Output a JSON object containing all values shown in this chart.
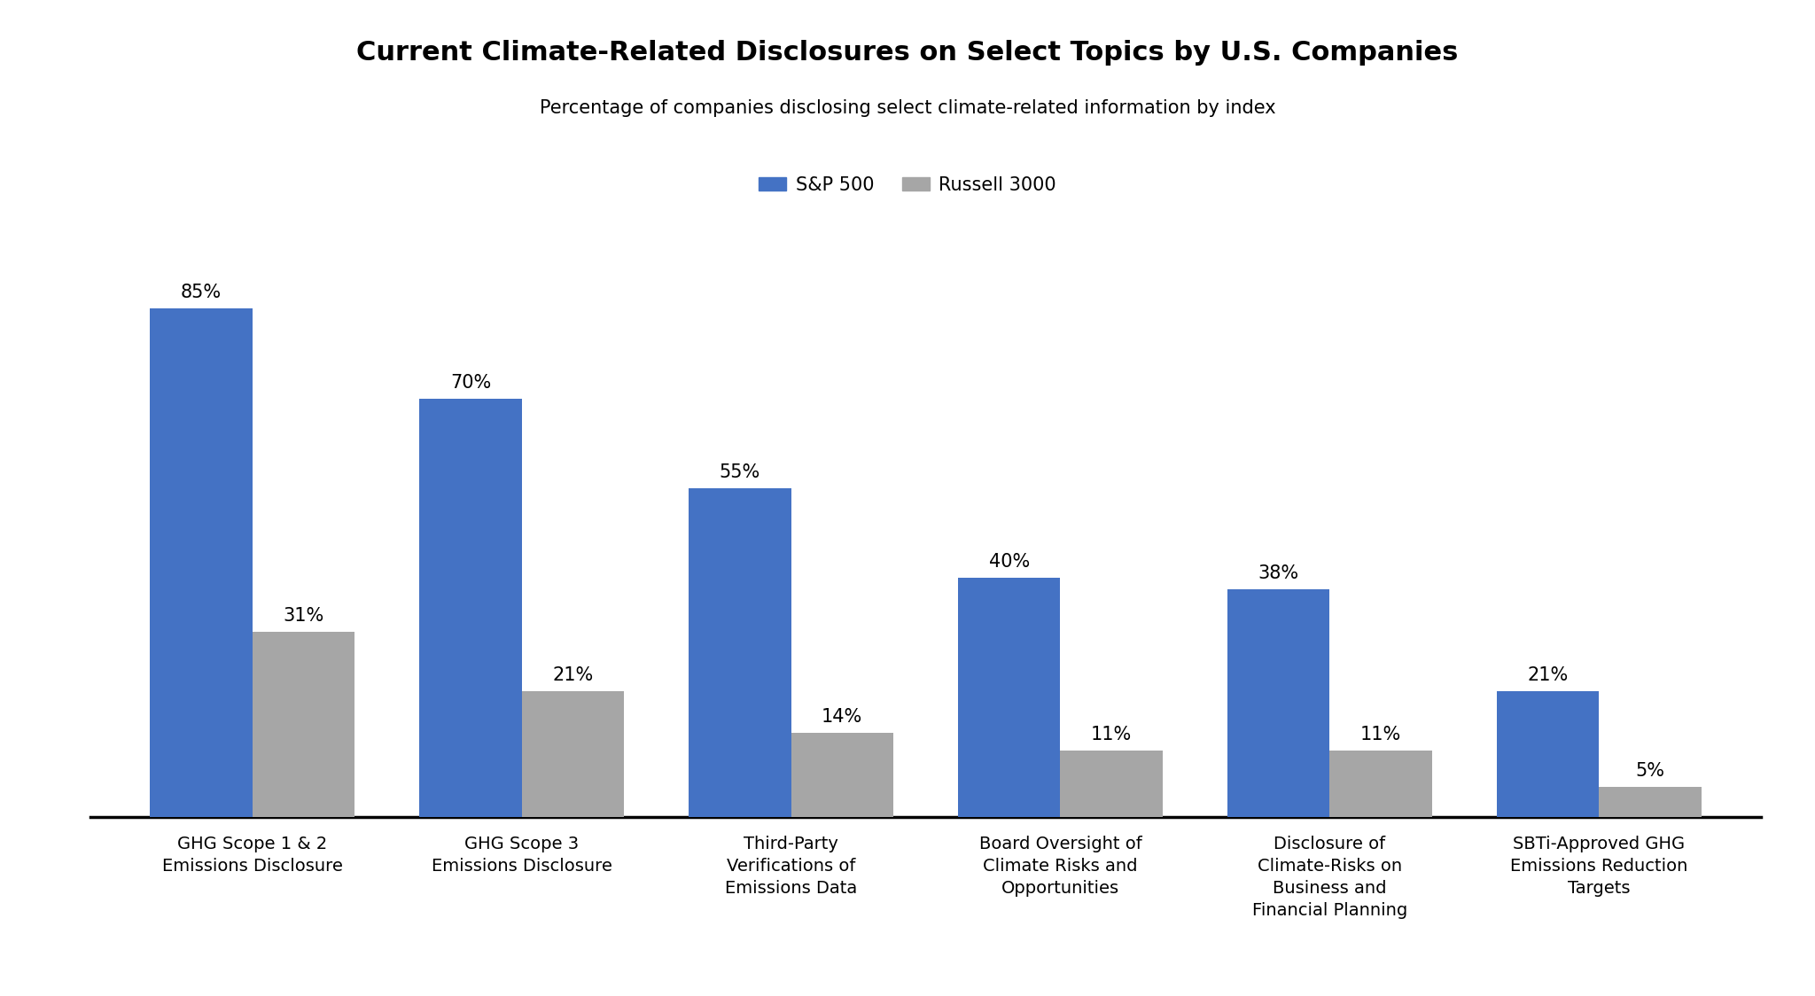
{
  "title": "Current Climate-Related Disclosures on Select Topics by U.S. Companies",
  "subtitle": "Percentage of companies disclosing select climate-related information by index",
  "categories": [
    "GHG Scope 1 & 2\nEmissions Disclosure",
    "GHG Scope 3\nEmissions Disclosure",
    "Third-Party\nVerifications of\nEmissions Data",
    "Board Oversight of\nClimate Risks and\nOpportunities",
    "Disclosure of\nClimate-Risks on\nBusiness and\nFinancial Planning",
    "SBTi-Approved GHG\nEmissions Reduction\nTargets"
  ],
  "sp500_values": [
    85,
    70,
    55,
    40,
    38,
    21
  ],
  "russell_values": [
    31,
    21,
    14,
    11,
    11,
    5
  ],
  "sp500_color": "#4472C4",
  "russell_color": "#A6A6A6",
  "bar_width": 0.38,
  "title_fontsize": 22,
  "subtitle_fontsize": 15,
  "tick_fontsize": 14,
  "legend_fontsize": 15,
  "value_fontsize": 15,
  "background_color": "#FFFFFF",
  "legend_labels": [
    "S&P 500",
    "Russell 3000"
  ],
  "ylim": [
    0,
    100
  ]
}
